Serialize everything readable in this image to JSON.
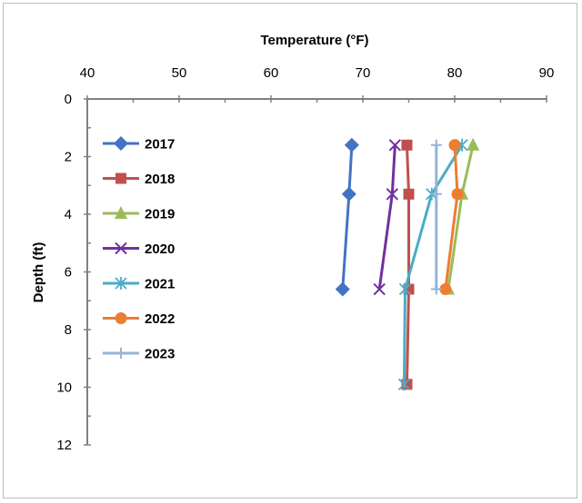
{
  "chart_data": {
    "type": "line",
    "title": "",
    "xlabel": "Temperature  (°F)",
    "ylabel": "Depth (ft)",
    "xlim": [
      40,
      90
    ],
    "ylim": [
      0,
      12
    ],
    "x_ticks": [
      "40",
      "50",
      "60",
      "70",
      "80",
      "90"
    ],
    "y_ticks": [
      "0",
      "2",
      "4",
      "6",
      "8",
      "10",
      "12"
    ],
    "x_axis_position": "top",
    "y_axis_inverted": true,
    "grid": false,
    "legend_position": "left",
    "series": [
      {
        "name": "2017",
        "color": "#4472C4",
        "marker": "diamond",
        "points": [
          {
            "x": 68.8,
            "y": 1.6
          },
          {
            "x": 68.5,
            "y": 3.3
          },
          {
            "x": 67.8,
            "y": 6.6
          }
        ]
      },
      {
        "name": "2018",
        "color": "#C0504D",
        "marker": "square",
        "points": [
          {
            "x": 74.8,
            "y": 1.6
          },
          {
            "x": 75.0,
            "y": 3.3
          },
          {
            "x": 75.0,
            "y": 6.6
          },
          {
            "x": 74.8,
            "y": 9.9
          }
        ]
      },
      {
        "name": "2019",
        "color": "#9BBB59",
        "marker": "triangle",
        "points": [
          {
            "x": 82.0,
            "y": 1.6
          },
          {
            "x": 80.8,
            "y": 3.3
          },
          {
            "x": 79.3,
            "y": 6.6
          }
        ]
      },
      {
        "name": "2020",
        "color": "#7030A0",
        "marker": "x",
        "points": [
          {
            "x": 73.5,
            "y": 1.6
          },
          {
            "x": 73.2,
            "y": 3.3
          },
          {
            "x": 71.8,
            "y": 6.6
          }
        ]
      },
      {
        "name": "2021",
        "color": "#4BACC6",
        "marker": "asterisk",
        "points": [
          {
            "x": 80.8,
            "y": 1.6
          },
          {
            "x": 77.5,
            "y": 3.3
          },
          {
            "x": 74.6,
            "y": 6.6
          },
          {
            "x": 74.5,
            "y": 9.9
          }
        ]
      },
      {
        "name": "2022",
        "color": "#ED7D31",
        "marker": "circle",
        "points": [
          {
            "x": 80.0,
            "y": 1.6
          },
          {
            "x": 80.3,
            "y": 3.3
          },
          {
            "x": 79.0,
            "y": 6.6
          }
        ]
      },
      {
        "name": "2023",
        "color": "#95B3D7",
        "marker": "plus",
        "points": [
          {
            "x": 78.0,
            "y": 1.6
          },
          {
            "x": 78.0,
            "y": 3.3
          },
          {
            "x": 78.0,
            "y": 6.6
          }
        ]
      }
    ]
  }
}
